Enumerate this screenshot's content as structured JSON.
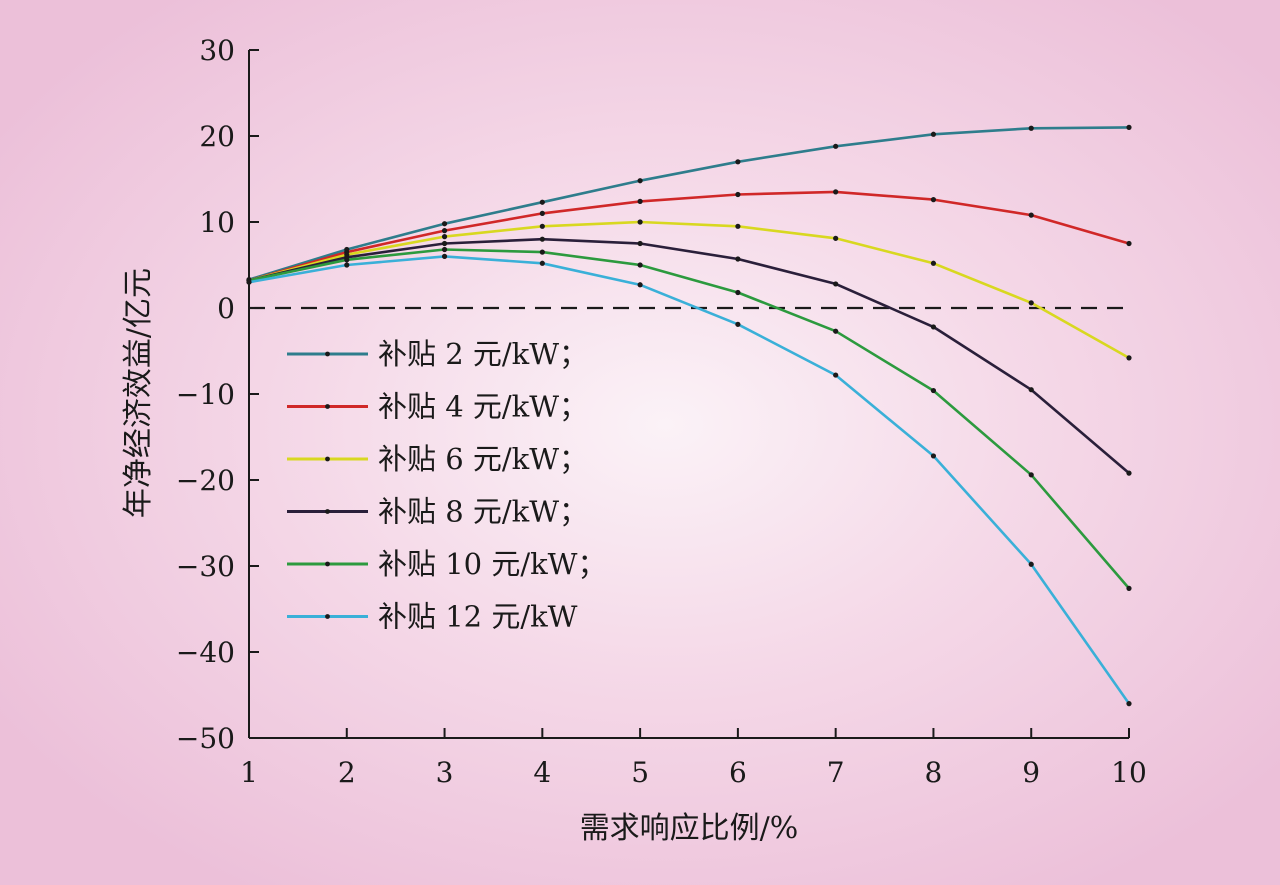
{
  "chart_data": {
    "type": "line",
    "xlabel": "需求响应比例/%",
    "ylabel": "年净经济效益/亿元",
    "xlim": [
      1,
      10
    ],
    "ylim": [
      -50,
      30
    ],
    "x_ticks": [
      1,
      2,
      3,
      4,
      5,
      6,
      7,
      8,
      9,
      10
    ],
    "y_ticks": [
      30,
      20,
      10,
      0,
      -10,
      -20,
      -30,
      -40,
      -50
    ],
    "y_tick_labels": [
      "30",
      "20",
      "10",
      "0",
      "−10",
      "−20",
      "−30",
      "−40",
      "−50"
    ],
    "zero_reference_line": "dashed",
    "grid": false,
    "legend_position": "left-middle",
    "x": [
      1,
      2,
      3,
      4,
      5,
      6,
      7,
      8,
      9,
      10
    ],
    "series": [
      {
        "name": "补贴 2 元/kW；",
        "color": "#2e7d8c",
        "values": [
          3.3,
          6.8,
          9.8,
          12.3,
          14.8,
          17.0,
          18.8,
          20.2,
          20.9,
          21.0
        ]
      },
      {
        "name": "补贴 4 元/kW；",
        "color": "#d02828",
        "values": [
          3.2,
          6.5,
          9.0,
          11.0,
          12.4,
          13.2,
          13.5,
          12.6,
          10.8,
          7.5
        ]
      },
      {
        "name": "补贴 6 元/kW；",
        "color": "#d8d820",
        "values": [
          3.2,
          6.2,
          8.3,
          9.5,
          10.0,
          9.5,
          8.1,
          5.2,
          0.6,
          -5.8
        ]
      },
      {
        "name": "补贴 8 元/kW；",
        "color": "#2a1f3a",
        "values": [
          3.2,
          5.9,
          7.5,
          8.0,
          7.5,
          5.7,
          2.8,
          -2.2,
          -9.5,
          -19.2
        ]
      },
      {
        "name": "补贴 10 元/kW；",
        "color": "#2c9a3e",
        "values": [
          3.2,
          5.6,
          6.8,
          6.5,
          5.0,
          1.8,
          -2.7,
          -9.6,
          -19.4,
          -32.6
        ]
      },
      {
        "name": "补贴 12 元/kW",
        "color": "#3ab0d8",
        "values": [
          3.0,
          5.0,
          6.0,
          5.2,
          2.7,
          -1.9,
          -7.8,
          -17.2,
          -29.8,
          -46.0
        ]
      }
    ]
  }
}
